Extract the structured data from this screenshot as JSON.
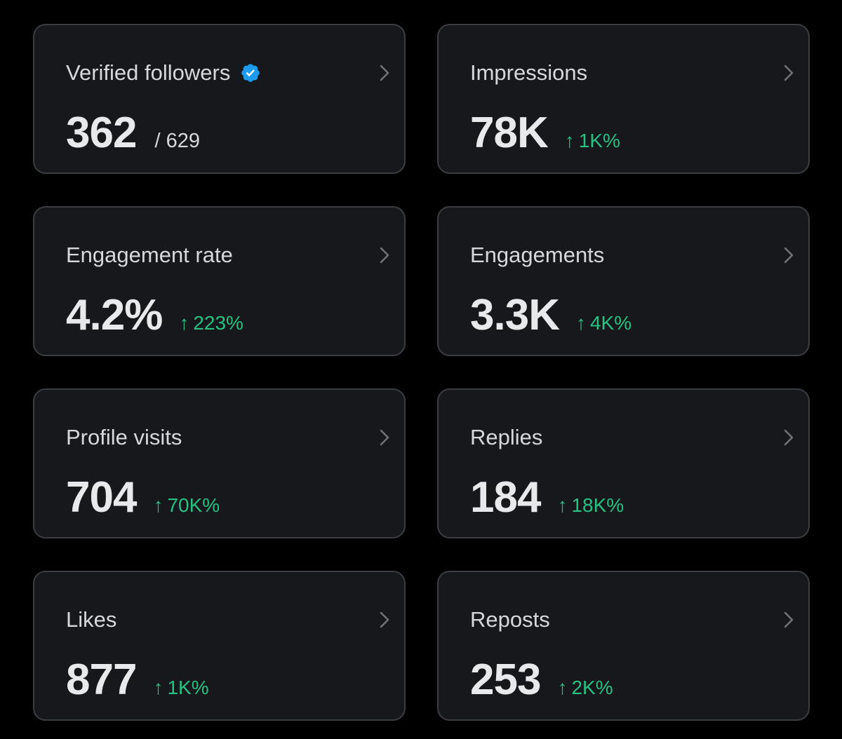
{
  "colors": {
    "background": "#000000",
    "card_background": "#16181c",
    "card_border": "#3a3d42",
    "positive_change": "#27c281",
    "verified_badge": "#1d9bf0"
  },
  "icons": {
    "verified": "verified-badge-icon",
    "chevron": "chevron-right-icon",
    "arrow": "arrow-up-icon"
  },
  "cards": [
    {
      "id": "verified-followers",
      "title": "Verified followers",
      "value": "362",
      "total": "/ 629",
      "verified": true
    },
    {
      "id": "impressions",
      "title": "Impressions",
      "value": "78K",
      "change": "1K%",
      "arrow": "↑"
    },
    {
      "id": "engagement-rate",
      "title": "Engagement rate",
      "value": "4.2%",
      "change": "223%",
      "arrow": "↑"
    },
    {
      "id": "engagements",
      "title": "Engagements",
      "value": "3.3K",
      "change": "4K%",
      "arrow": "↑"
    },
    {
      "id": "profile-visits",
      "title": "Profile visits",
      "value": "704",
      "change": "70K%",
      "arrow": "↑"
    },
    {
      "id": "replies",
      "title": "Replies",
      "value": "184",
      "change": "18K%",
      "arrow": "↑"
    },
    {
      "id": "likes",
      "title": "Likes",
      "value": "877",
      "change": "1K%",
      "arrow": "↑"
    },
    {
      "id": "reposts",
      "title": "Reposts",
      "value": "253",
      "change": "2K%",
      "arrow": "↑"
    }
  ]
}
